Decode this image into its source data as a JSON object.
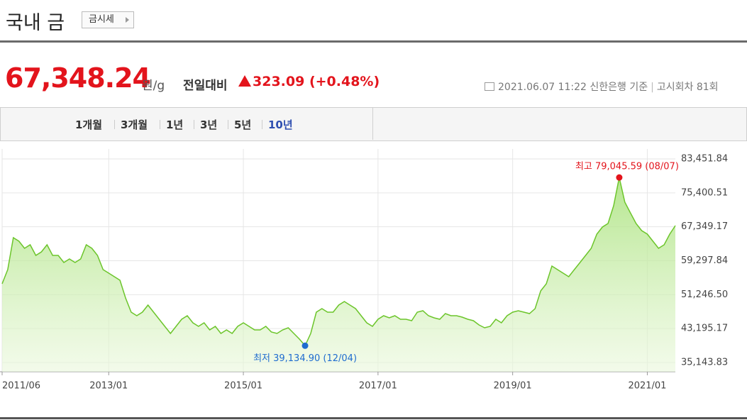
{
  "header": {
    "title": "국내 금",
    "button": "금시세"
  },
  "price": {
    "value": "67,348.24",
    "unit": "원/g",
    "change_label": "전일대비",
    "change": "323.09",
    "change_pct": "(+0.48%)"
  },
  "meta": {
    "date": "2021.06.07 11:22",
    "source": "신한은행 기준",
    "round": "고시회차 81회"
  },
  "tabs": [
    "1개월",
    "3개월",
    "1년",
    "3년",
    "5년",
    "10년"
  ],
  "active_tab": 5,
  "chart_data": {
    "type": "area",
    "color": "#6cc52b",
    "grid": true,
    "x": [
      "2011/06",
      "2011/07",
      "2011/08",
      "2011/09",
      "2011/10",
      "2011/11",
      "2011/12",
      "2012/01",
      "2012/02",
      "2012/03",
      "2012/04",
      "2012/05",
      "2012/06",
      "2012/07",
      "2012/08",
      "2012/09",
      "2012/10",
      "2012/11",
      "2012/12",
      "2013/01",
      "2013/02",
      "2013/03",
      "2013/04",
      "2013/05",
      "2013/06",
      "2013/07",
      "2013/08",
      "2013/09",
      "2013/10",
      "2013/11",
      "2013/12",
      "2014/01",
      "2014/02",
      "2014/03",
      "2014/04",
      "2014/05",
      "2014/06",
      "2014/07",
      "2014/08",
      "2014/09",
      "2014/10",
      "2014/11",
      "2014/12",
      "2015/01",
      "2015/02",
      "2015/03",
      "2015/04",
      "2015/05",
      "2015/06",
      "2015/07",
      "2015/08",
      "2015/09",
      "2015/10",
      "2015/11",
      "2015/12",
      "2016/01",
      "2016/02",
      "2016/03",
      "2016/04",
      "2016/05",
      "2016/06",
      "2016/07",
      "2016/08",
      "2016/09",
      "2016/10",
      "2016/11",
      "2016/12",
      "2017/01",
      "2017/02",
      "2017/03",
      "2017/04",
      "2017/05",
      "2017/06",
      "2017/07",
      "2017/08",
      "2017/09",
      "2017/10",
      "2017/11",
      "2017/12",
      "2018/01",
      "2018/02",
      "2018/03",
      "2018/04",
      "2018/05",
      "2018/06",
      "2018/07",
      "2018/08",
      "2018/09",
      "2018/10",
      "2018/11",
      "2018/12",
      "2019/01",
      "2019/02",
      "2019/03",
      "2019/04",
      "2019/05",
      "2019/06",
      "2019/07",
      "2019/08",
      "2019/09",
      "2019/10",
      "2019/11",
      "2019/12",
      "2020/01",
      "2020/02",
      "2020/03",
      "2020/04",
      "2020/05",
      "2020/06",
      "2020/07",
      "2020/08",
      "2020/09",
      "2020/10",
      "2020/11",
      "2020/12",
      "2021/01",
      "2021/02",
      "2021/03",
      "2021/04",
      "2021/05",
      "2021/06"
    ],
    "values": [
      53830,
      57190,
      64770,
      63920,
      62240,
      63080,
      60560,
      61400,
      63080,
      60560,
      60560,
      58870,
      59720,
      58870,
      59720,
      63080,
      62240,
      60560,
      57190,
      56350,
      55510,
      54670,
      50460,
      47090,
      46250,
      47090,
      48780,
      47090,
      45410,
      43730,
      42040,
      43730,
      45410,
      46250,
      44570,
      43730,
      44570,
      42880,
      43730,
      42040,
      42880,
      42040,
      43730,
      44570,
      43730,
      42880,
      42880,
      43730,
      42380,
      42040,
      42880,
      43390,
      42040,
      40700,
      39134.9,
      42040,
      47090,
      47930,
      47090,
      47090,
      48780,
      49620,
      48780,
      47930,
      46250,
      44570,
      43730,
      45410,
      46250,
      45750,
      46250,
      45410,
      45410,
      45070,
      47090,
      47430,
      46250,
      45750,
      45410,
      46760,
      46250,
      46250,
      45910,
      45410,
      45070,
      44060,
      43390,
      43730,
      45410,
      44570,
      46250,
      47090,
      47430,
      47090,
      46760,
      47930,
      52140,
      53830,
      58030,
      57190,
      56350,
      55510,
      57190,
      58870,
      60560,
      62240,
      65610,
      67290,
      68130,
      72340,
      79045.59,
      73180,
      70650,
      68130,
      66450,
      65610,
      63920,
      62240,
      63080,
      65610,
      67630
    ],
    "ylim": [
      35143.83,
      83451.84
    ],
    "yticks": [
      {
        "value": 35143.83,
        "label": "35,143.83"
      },
      {
        "value": 43195.17,
        "label": "43,195.17"
      },
      {
        "value": 51246.5,
        "label": "51,246.50"
      },
      {
        "value": 59297.84,
        "label": "59,297.84"
      },
      {
        "value": 67349.17,
        "label": "67,349.17"
      },
      {
        "value": 75400.51,
        "label": "75,400.51"
      },
      {
        "value": 83451.84,
        "label": "83,451.84"
      }
    ],
    "xticks": [
      "2011/06",
      "2013/01",
      "2015/01",
      "2017/01",
      "2019/01",
      "2021/01"
    ],
    "max_annotation": {
      "text": "최고 79,045.59 (08/07)",
      "color": "#e3141c"
    },
    "min_annotation": {
      "text": "최저 39,134.90 (12/04)",
      "color": "#1f6ccf"
    }
  }
}
